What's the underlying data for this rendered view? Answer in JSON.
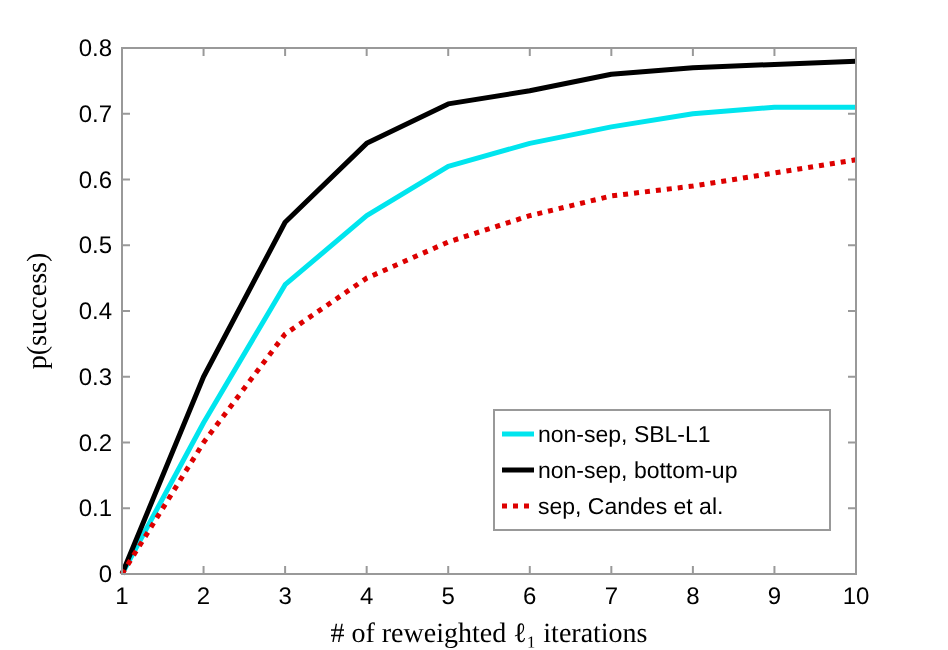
{
  "chart_data": {
    "type": "line",
    "xlabel": "# of reweighted ℓ₁ iterations",
    "ylabel": "p(success)",
    "x": [
      1,
      2,
      3,
      4,
      5,
      6,
      7,
      8,
      9,
      10
    ],
    "series": [
      {
        "name": "non-sep, SBL-L1",
        "color": "#00e5ee",
        "values": [
          0,
          0.23,
          0.44,
          0.545,
          0.62,
          0.655,
          0.68,
          0.7,
          0.71,
          0.71
        ],
        "line_style": "solid"
      },
      {
        "name": "non-sep, bottom-up",
        "color": "#000000",
        "values": [
          0,
          0.3,
          0.535,
          0.655,
          0.715,
          0.735,
          0.76,
          0.77,
          0.775,
          0.78
        ],
        "line_style": "solid"
      },
      {
        "name": "sep, Candes et al.",
        "color": "#dd0000",
        "values": [
          0,
          0.2,
          0.365,
          0.45,
          0.505,
          0.545,
          0.575,
          0.59,
          0.61,
          0.63
        ],
        "line_style": "dotted"
      }
    ],
    "xlim": [
      1,
      10
    ],
    "xticks": [
      1,
      2,
      3,
      4,
      5,
      6,
      7,
      8,
      9,
      10
    ],
    "ylim": [
      0,
      0.8
    ],
    "yticks": [
      0,
      0.1,
      0.2,
      0.3,
      0.4,
      0.5,
      0.6,
      0.7,
      0.8
    ],
    "legend": "bottom right",
    "grid": false,
    "marker": "none"
  }
}
